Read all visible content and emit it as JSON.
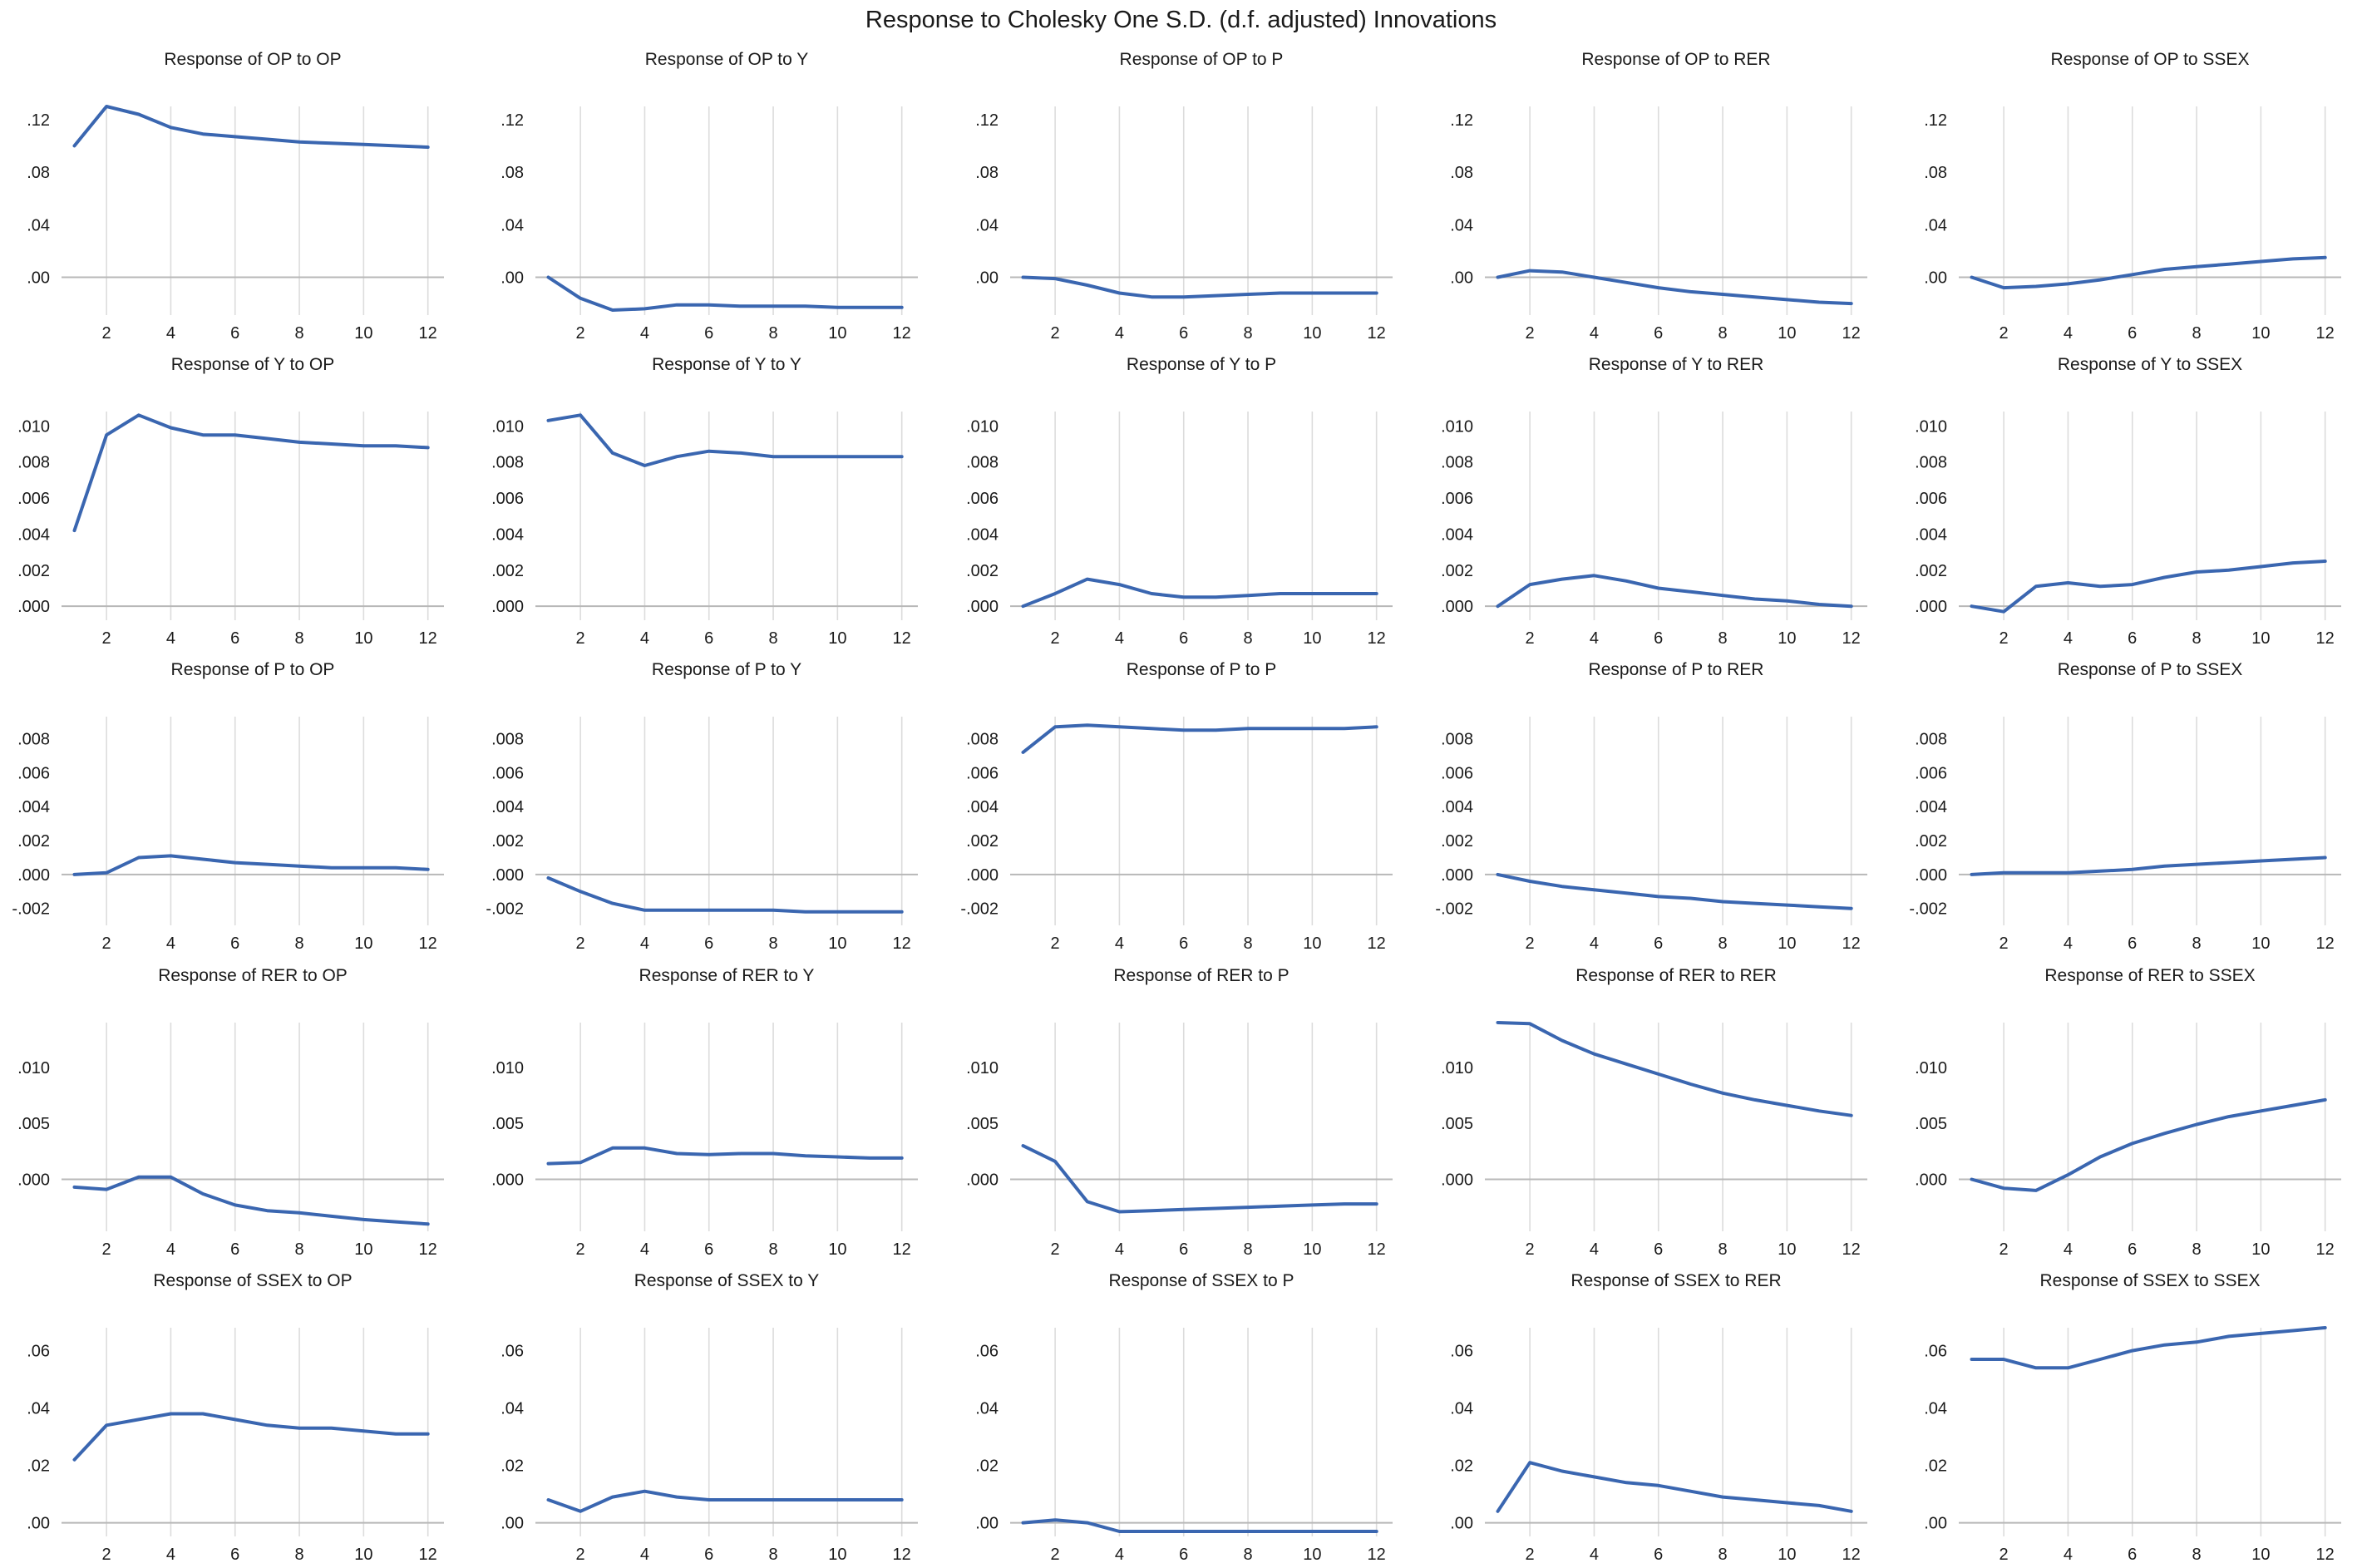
{
  "figure_title": "Response to Cholesky One S.D. (d.f. adjusted) Innovations",
  "colors": {
    "line": "#3a66b0",
    "grid": "#dcdcdc",
    "axis": "#b8b8b8",
    "text": "#1a1a1a"
  },
  "chart_data": {
    "type": "line",
    "x": [
      1,
      2,
      3,
      4,
      5,
      6,
      7,
      8,
      9,
      10,
      11,
      12
    ],
    "x_tick_labels": [
      "2",
      "4",
      "6",
      "8",
      "10",
      "12"
    ],
    "rows": [
      {
        "variable": "OP",
        "y_tick_values": [
          0.0,
          0.04,
          0.08,
          0.12
        ],
        "y_tick_labels": [
          ".00",
          ".04",
          ".08",
          ".12"
        ],
        "ylim": [
          -0.025,
          0.13
        ],
        "panels": [
          {
            "title": "Response of OP to OP",
            "values": [
              0.1,
              0.13,
              0.124,
              0.114,
              0.109,
              0.107,
              0.105,
              0.103,
              0.102,
              0.101,
              0.1,
              0.099
            ]
          },
          {
            "title": "Response of OP to Y",
            "values": [
              0.0,
              -0.016,
              -0.025,
              -0.024,
              -0.021,
              -0.021,
              -0.022,
              -0.022,
              -0.022,
              -0.023,
              -0.023,
              -0.023
            ]
          },
          {
            "title": "Response of OP to P",
            "values": [
              0.0,
              -0.001,
              -0.006,
              -0.012,
              -0.015,
              -0.015,
              -0.014,
              -0.013,
              -0.012,
              -0.012,
              -0.012,
              -0.012
            ]
          },
          {
            "title": "Response of OP to RER",
            "values": [
              0.0,
              0.005,
              0.004,
              0.0,
              -0.004,
              -0.008,
              -0.011,
              -0.013,
              -0.015,
              -0.017,
              -0.019,
              -0.02
            ]
          },
          {
            "title": "Response of OP to SSEX",
            "values": [
              0.0,
              -0.008,
              -0.007,
              -0.005,
              -0.002,
              0.002,
              0.006,
              0.008,
              0.01,
              0.012,
              0.014,
              0.015
            ]
          }
        ]
      },
      {
        "variable": "Y",
        "y_tick_values": [
          0.0,
          0.002,
          0.004,
          0.006,
          0.008,
          0.01
        ],
        "y_tick_labels": [
          ".000",
          ".002",
          ".004",
          ".006",
          ".008",
          ".010"
        ],
        "ylim": [
          -0.0005,
          0.0108
        ],
        "panels": [
          {
            "title": "Response of Y to OP",
            "values": [
              0.0042,
              0.0095,
              0.0106,
              0.0099,
              0.0095,
              0.0095,
              0.0093,
              0.0091,
              0.009,
              0.0089,
              0.0089,
              0.0088
            ]
          },
          {
            "title": "Response of Y to Y",
            "values": [
              0.0103,
              0.0106,
              0.0085,
              0.0078,
              0.0083,
              0.0086,
              0.0085,
              0.0083,
              0.0083,
              0.0083,
              0.0083,
              0.0083
            ]
          },
          {
            "title": "Response of Y to P",
            "values": [
              0.0,
              0.0007,
              0.0015,
              0.0012,
              0.0007,
              0.0005,
              0.0005,
              0.0006,
              0.0007,
              0.0007,
              0.0007,
              0.0007
            ]
          },
          {
            "title": "Response of Y to RER",
            "values": [
              0.0,
              0.0012,
              0.0015,
              0.0017,
              0.0014,
              0.001,
              0.0008,
              0.0006,
              0.0004,
              0.0003,
              0.0001,
              0.0
            ]
          },
          {
            "title": "Response of Y to SSEX",
            "values": [
              0.0,
              -0.0003,
              0.0011,
              0.0013,
              0.0011,
              0.0012,
              0.0016,
              0.0019,
              0.002,
              0.0022,
              0.0024,
              0.0025
            ]
          }
        ]
      },
      {
        "variable": "P",
        "y_tick_values": [
          -0.002,
          0.0,
          0.002,
          0.004,
          0.006,
          0.008
        ],
        "y_tick_labels": [
          "-.002",
          ".000",
          ".002",
          ".004",
          ".006",
          ".008"
        ],
        "ylim": [
          -0.0027,
          0.0093
        ],
        "panels": [
          {
            "title": "Response of P to OP",
            "values": [
              0.0,
              0.0001,
              0.001,
              0.0011,
              0.0009,
              0.0007,
              0.0006,
              0.0005,
              0.0004,
              0.0004,
              0.0004,
              0.0003
            ]
          },
          {
            "title": "Response of P to Y",
            "values": [
              -0.0002,
              -0.001,
              -0.0017,
              -0.0021,
              -0.0021,
              -0.0021,
              -0.0021,
              -0.0021,
              -0.0022,
              -0.0022,
              -0.0022,
              -0.0022
            ]
          },
          {
            "title": "Response of P to P",
            "values": [
              0.0072,
              0.0087,
              0.0088,
              0.0087,
              0.0086,
              0.0085,
              0.0085,
              0.0086,
              0.0086,
              0.0086,
              0.0086,
              0.0087
            ]
          },
          {
            "title": "Response of P to RER",
            "values": [
              0.0,
              -0.0004,
              -0.0007,
              -0.0009,
              -0.0011,
              -0.0013,
              -0.0014,
              -0.0016,
              -0.0017,
              -0.0018,
              -0.0019,
              -0.002
            ]
          },
          {
            "title": "Response of P to SSEX",
            "values": [
              0.0,
              0.0001,
              0.0001,
              0.0001,
              0.0002,
              0.0003,
              0.0005,
              0.0006,
              0.0007,
              0.0008,
              0.0009,
              0.001
            ]
          }
        ]
      },
      {
        "variable": "RER",
        "y_tick_values": [
          0.0,
          0.005,
          0.01
        ],
        "y_tick_labels": [
          ".000",
          ".005",
          ".010"
        ],
        "ylim": [
          -0.0042,
          0.014
        ],
        "panels": [
          {
            "title": "Response of RER to OP",
            "values": [
              -0.0007,
              -0.0009,
              0.0002,
              0.0002,
              -0.0013,
              -0.0023,
              -0.0028,
              -0.003,
              -0.0033,
              -0.0036,
              -0.0038,
              -0.004
            ]
          },
          {
            "title": "Response of RER to Y",
            "values": [
              0.0014,
              0.0015,
              0.0028,
              0.0028,
              0.0023,
              0.0022,
              0.0023,
              0.0023,
              0.0021,
              0.002,
              0.0019,
              0.0019
            ]
          },
          {
            "title": "Response of RER to P",
            "values": [
              0.003,
              0.0016,
              -0.002,
              -0.0029,
              -0.0028,
              -0.0027,
              -0.0026,
              -0.0025,
              -0.0024,
              -0.0023,
              -0.0022,
              -0.0022
            ]
          },
          {
            "title": "Response of RER to RER",
            "values": [
              0.014,
              0.0139,
              0.0124,
              0.0112,
              0.0103,
              0.0094,
              0.0085,
              0.0077,
              0.0071,
              0.0066,
              0.0061,
              0.0057
            ]
          },
          {
            "title": "Response of RER to SSEX",
            "values": [
              0.0,
              -0.0008,
              -0.001,
              0.0004,
              0.002,
              0.0032,
              0.0041,
              0.0049,
              0.0056,
              0.0061,
              0.0066,
              0.0071
            ]
          }
        ]
      },
      {
        "variable": "SSEX",
        "y_tick_values": [
          0.0,
          0.02,
          0.04,
          0.06
        ],
        "y_tick_labels": [
          ".00",
          ".02",
          ".04",
          ".06"
        ],
        "ylim": [
          -0.003,
          0.068
        ],
        "panels": [
          {
            "title": "Response of SSEX to OP",
            "values": [
              0.022,
              0.034,
              0.036,
              0.038,
              0.038,
              0.036,
              0.034,
              0.033,
              0.033,
              0.032,
              0.031,
              0.031
            ]
          },
          {
            "title": "Response of SSEX to Y",
            "values": [
              0.008,
              0.004,
              0.009,
              0.011,
              0.009,
              0.008,
              0.008,
              0.008,
              0.008,
              0.008,
              0.008,
              0.008
            ]
          },
          {
            "title": "Response of SSEX to P",
            "values": [
              0.0,
              0.001,
              0.0,
              -0.004,
              -0.004,
              -0.004,
              -0.004,
              -0.004,
              -0.004,
              -0.004,
              -0.004,
              -0.004
            ]
          },
          {
            "title": "Response of SSEX to RER",
            "values": [
              0.004,
              0.021,
              0.018,
              0.016,
              0.014,
              0.013,
              0.011,
              0.009,
              0.008,
              0.007,
              0.006,
              0.004
            ]
          },
          {
            "title": "Response of SSEX to SSEX",
            "values": [
              0.057,
              0.057,
              0.054,
              0.054,
              0.057,
              0.06,
              0.062,
              0.063,
              0.065,
              0.066,
              0.067,
              0.068
            ]
          }
        ]
      }
    ]
  }
}
